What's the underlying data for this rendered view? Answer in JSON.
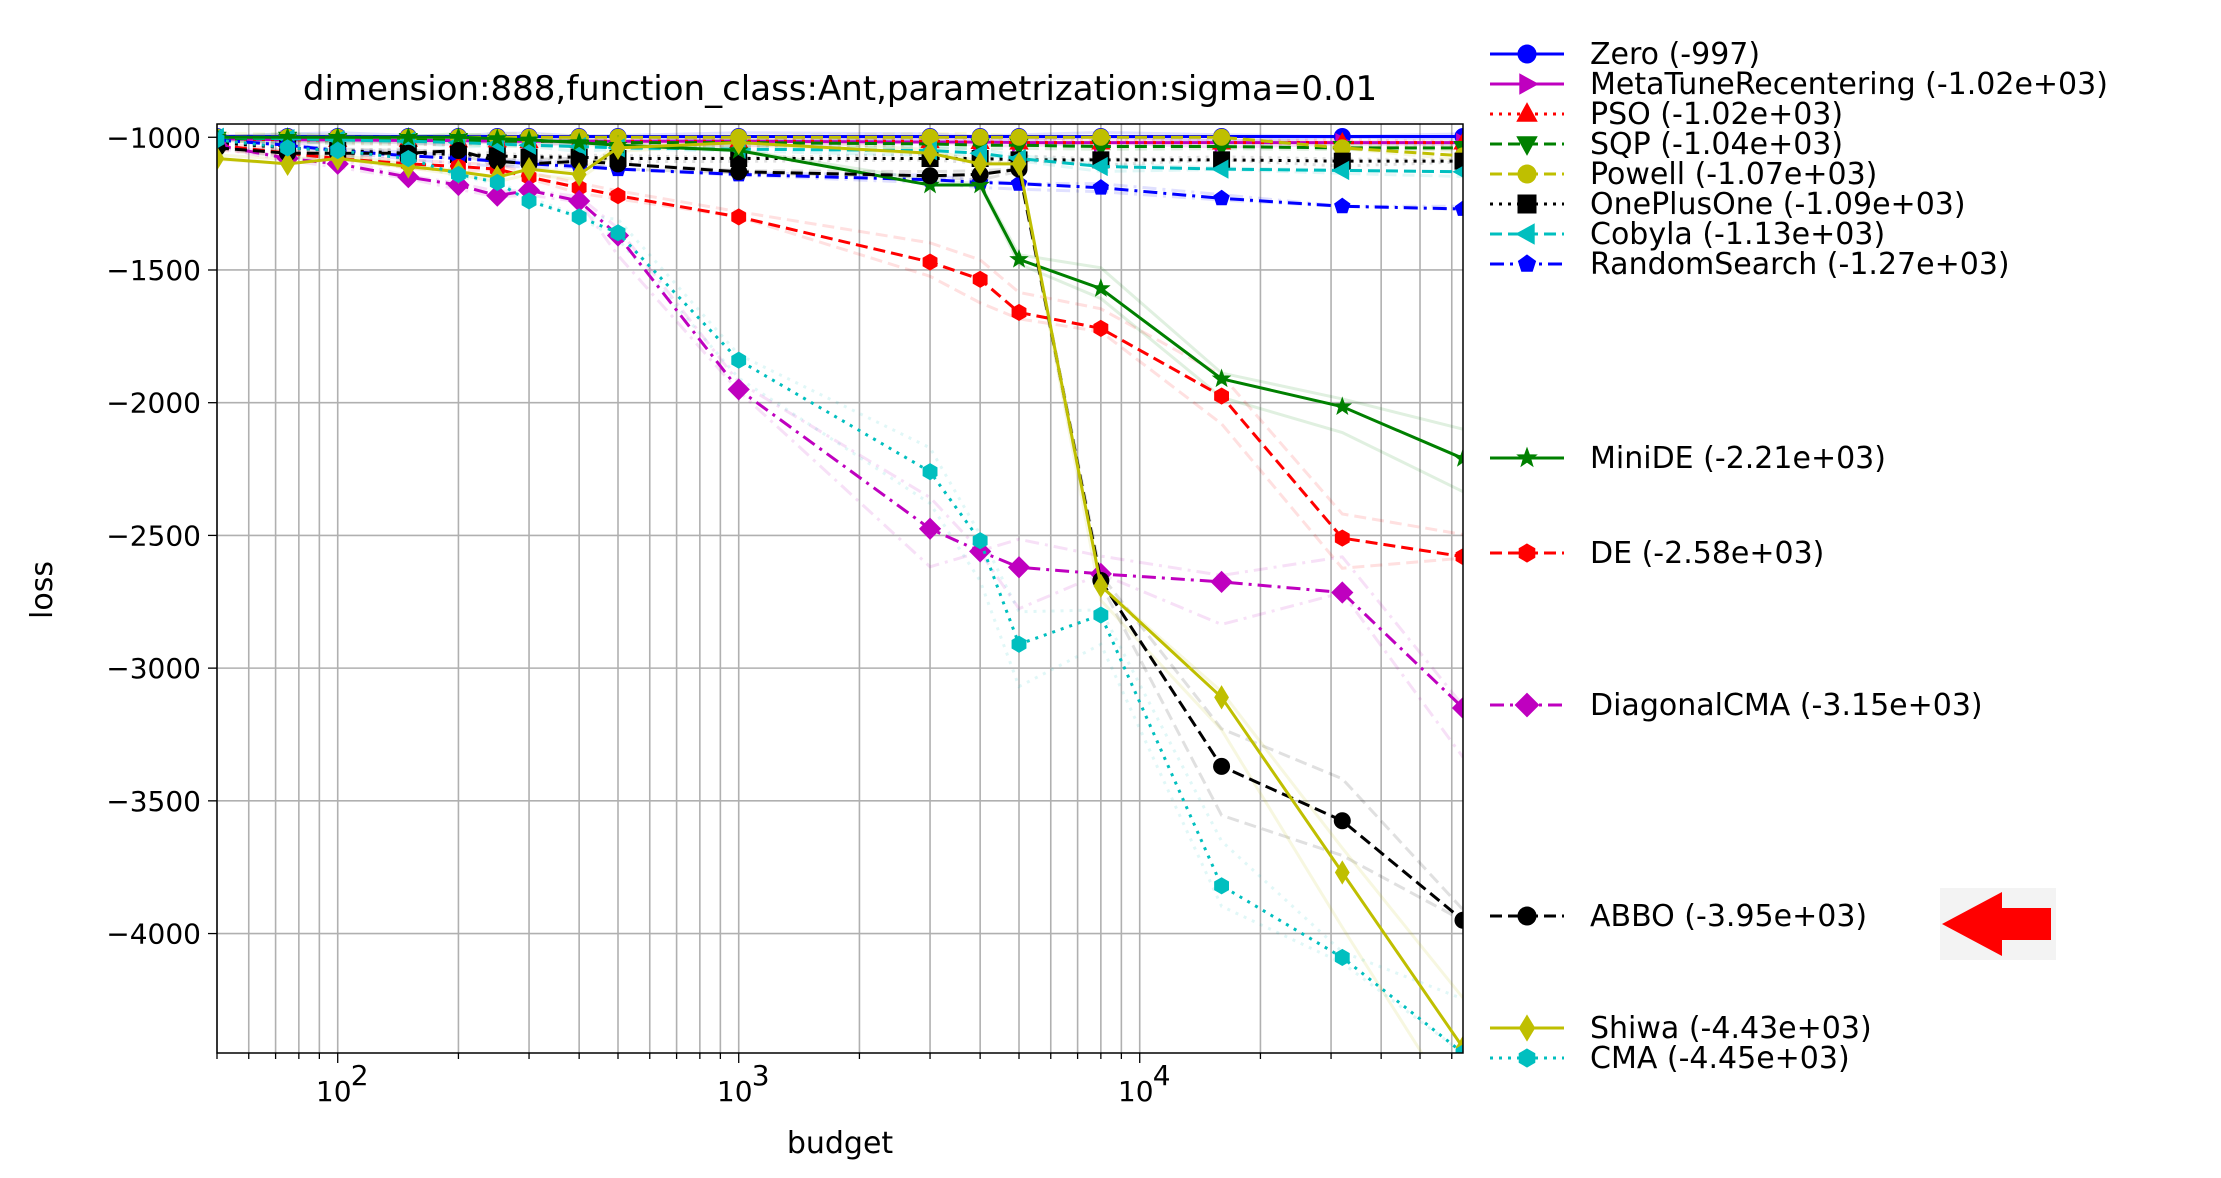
{
  "chart_data": {
    "type": "line",
    "title": "dimension:888,function_class:Ant,parametrization:sigma=0.01",
    "xlabel": "budget",
    "ylabel": "loss",
    "xscale": "log",
    "xlim": [
      50,
      64000
    ],
    "ylim": [
      -4450,
      -950
    ],
    "grid": true,
    "xticks": [
      {
        "value": 100,
        "base": "10",
        "exp": "2"
      },
      {
        "value": 1000,
        "base": "10",
        "exp": "3"
      },
      {
        "value": 10000,
        "base": "10",
        "exp": "4"
      }
    ],
    "yticks": [
      {
        "value": -1000,
        "label": "−1000"
      },
      {
        "value": -1500,
        "label": "−1500"
      },
      {
        "value": -2000,
        "label": "−2000"
      },
      {
        "value": -2500,
        "label": "−2500"
      },
      {
        "value": -3000,
        "label": "−3000"
      },
      {
        "value": -3500,
        "label": "−3500"
      },
      {
        "value": -4000,
        "label": "−4000"
      }
    ],
    "series": [
      {
        "name": "Zero",
        "legend": "Zero (-997)",
        "color": "#0000ff",
        "dash": "solid",
        "marker": "circle",
        "x": [
          50,
          75,
          100,
          150,
          200,
          250,
          300,
          400,
          500,
          1000,
          3000,
          4000,
          5000,
          8000,
          16000,
          32000,
          64000
        ],
        "y": [
          -997,
          -997,
          -997,
          -997,
          -997,
          -997,
          -997,
          -997,
          -997,
          -997,
          -997,
          -997,
          -997,
          -997,
          -997,
          -997,
          -997
        ]
      },
      {
        "name": "MetaTuneRecentering",
        "legend": "MetaTuneRecentering (-1.02e+03)",
        "color": "#bf00bf",
        "dash": "solid",
        "marker": "triangle-right",
        "x": [
          50,
          75,
          100,
          150,
          200,
          250,
          300,
          400,
          500,
          1000,
          3000,
          4000,
          5000,
          8000,
          16000,
          32000,
          64000
        ],
        "y": [
          -1005,
          -1010,
          -1010,
          -1012,
          -1012,
          -1015,
          -1015,
          -1015,
          -1015,
          -1015,
          -1018,
          -1018,
          -1020,
          -1020,
          -1020,
          -1020,
          -1020
        ]
      },
      {
        "name": "PSO",
        "legend": "PSO (-1.02e+03)",
        "color": "#ff0000",
        "dash": "dotted",
        "marker": "triangle-up",
        "x": [
          50,
          75,
          100,
          150,
          200,
          250,
          300,
          400,
          500,
          1000,
          3000,
          4000,
          5000,
          8000,
          16000,
          32000,
          64000
        ],
        "y": [
          -1005,
          -1010,
          -1010,
          -1010,
          -1012,
          -1012,
          -1015,
          -1015,
          -1015,
          -1015,
          -1015,
          -1018,
          -1020,
          -1020,
          -1020,
          -1020,
          -1020
        ]
      },
      {
        "name": "SQP",
        "legend": "SQP (-1.04e+03)",
        "color": "#008000",
        "dash": "dashed",
        "marker": "triangle-down",
        "x": [
          50,
          75,
          100,
          150,
          200,
          250,
          300,
          400,
          500,
          1000,
          3000,
          4000,
          5000,
          8000,
          16000,
          32000,
          64000
        ],
        "y": [
          -1005,
          -1005,
          -1010,
          -1010,
          -1010,
          -1015,
          -1015,
          -1015,
          -1020,
          -1020,
          -1025,
          -1030,
          -1030,
          -1035,
          -1035,
          -1040,
          -1040
        ]
      },
      {
        "name": "Powell",
        "legend": "Powell (-1.07e+03)",
        "color": "#bfbf00",
        "dash": "dashed",
        "marker": "circle",
        "x": [
          50,
          75,
          100,
          150,
          200,
          250,
          300,
          400,
          500,
          1000,
          3000,
          4000,
          5000,
          8000,
          16000,
          32000,
          64000
        ],
        "y": [
          -1000,
          -1000,
          -1000,
          -1000,
          -1000,
          -1000,
          -1000,
          -1000,
          -1000,
          -1000,
          -1000,
          -1000,
          -1000,
          -1000,
          -1000,
          -1040,
          -1070
        ]
      },
      {
        "name": "OnePlusOne",
        "legend": "OnePlusOne (-1.09e+03)",
        "color": "#000000",
        "dash": "dotted",
        "marker": "square",
        "x": [
          50,
          75,
          100,
          150,
          200,
          250,
          300,
          400,
          500,
          1000,
          3000,
          4000,
          5000,
          8000,
          16000,
          32000,
          64000
        ],
        "y": [
          -1020,
          -1040,
          -1050,
          -1060,
          -1065,
          -1070,
          -1075,
          -1075,
          -1080,
          -1080,
          -1080,
          -1080,
          -1085,
          -1085,
          -1085,
          -1090,
          -1090
        ]
      },
      {
        "name": "Cobyla",
        "legend": "Cobyla (-1.13e+03)",
        "color": "#00bfbf",
        "dash": "dashed",
        "marker": "triangle-left",
        "x": [
          50,
          75,
          100,
          150,
          200,
          250,
          300,
          400,
          500,
          1000,
          3000,
          4000,
          5000,
          8000,
          16000,
          32000,
          64000
        ],
        "y": [
          -1000,
          -1005,
          -1010,
          -1015,
          -1020,
          -1025,
          -1030,
          -1035,
          -1040,
          -1045,
          -1050,
          -1060,
          -1080,
          -1110,
          -1120,
          -1125,
          -1130
        ]
      },
      {
        "name": "RandomSearch",
        "legend": "RandomSearch (-1.27e+03)",
        "color": "#0000ff",
        "dash": "dashdot",
        "marker": "pentagon",
        "x": [
          50,
          75,
          100,
          150,
          200,
          250,
          300,
          400,
          500,
          1000,
          3000,
          4000,
          5000,
          8000,
          16000,
          32000,
          64000
        ],
        "y": [
          -1010,
          -1030,
          -1050,
          -1070,
          -1080,
          -1090,
          -1100,
          -1110,
          -1120,
          -1140,
          -1160,
          -1170,
          -1175,
          -1190,
          -1230,
          -1260,
          -1270
        ]
      },
      {
        "name": "MiniDE",
        "legend": "MiniDE (-2.21e+03)",
        "color": "#008000",
        "dash": "solid",
        "marker": "star",
        "x": [
          50,
          75,
          100,
          150,
          200,
          250,
          300,
          400,
          500,
          1000,
          3000,
          4000,
          5000,
          8000,
          16000,
          32000,
          64000
        ],
        "y": [
          -1000,
          -1000,
          -1000,
          -1000,
          -1000,
          -1005,
          -1010,
          -1020,
          -1030,
          -1050,
          -1180,
          -1180,
          -1460,
          -1570,
          -1910,
          -2015,
          -2210
        ]
      },
      {
        "name": "DE",
        "legend": "DE (-2.58e+03)",
        "color": "#ff0000",
        "dash": "dashed",
        "marker": "hexagon",
        "x": [
          50,
          75,
          100,
          150,
          200,
          250,
          300,
          400,
          500,
          1000,
          3000,
          4000,
          5000,
          8000,
          16000,
          32000,
          64000
        ],
        "y": [
          -1030,
          -1060,
          -1080,
          -1100,
          -1110,
          -1120,
          -1150,
          -1190,
          -1220,
          -1300,
          -1470,
          -1535,
          -1660,
          -1720,
          -1975,
          -2510,
          -2580
        ]
      },
      {
        "name": "DiagonalCMA",
        "legend": "DiagonalCMA (-3.15e+03)",
        "color": "#bf00bf",
        "dash": "dashdot",
        "marker": "diamond",
        "x": [
          50,
          75,
          100,
          150,
          200,
          250,
          300,
          400,
          500,
          1000,
          3000,
          4000,
          5000,
          8000,
          16000,
          32000,
          64000
        ],
        "y": [
          -1030,
          -1080,
          -1100,
          -1150,
          -1180,
          -1220,
          -1200,
          -1240,
          -1370,
          -1950,
          -2475,
          -2560,
          -2620,
          -2645,
          -2675,
          -2715,
          -3150
        ]
      },
      {
        "name": "ABBO",
        "legend": "ABBO (-3.95e+03)",
        "color": "#000000",
        "dash": "dashed",
        "marker": "circle",
        "x": [
          50,
          75,
          100,
          150,
          200,
          250,
          300,
          400,
          500,
          1000,
          3000,
          4000,
          5000,
          8000,
          16000,
          32000,
          64000
        ],
        "y": [
          -1040,
          -1060,
          -1060,
          -1060,
          -1050,
          -1090,
          -1100,
          -1090,
          -1100,
          -1130,
          -1145,
          -1140,
          -1120,
          -2670,
          -3370,
          -3575,
          -3950
        ]
      },
      {
        "name": "Shiwa",
        "legend": "Shiwa (-4.43e+03)",
        "color": "#bfbf00",
        "dash": "solid",
        "marker": "thin-diamond",
        "x": [
          50,
          75,
          100,
          150,
          200,
          250,
          300,
          400,
          500,
          1000,
          3000,
          4000,
          5000,
          8000,
          16000,
          32000,
          64000
        ],
        "y": [
          -1080,
          -1100,
          -1080,
          -1110,
          -1130,
          -1150,
          -1120,
          -1140,
          -1040,
          -1020,
          -1060,
          -1100,
          -1100,
          -2690,
          -3110,
          -3770,
          -4430
        ]
      },
      {
        "name": "CMA",
        "legend": "CMA (-4.45e+03)",
        "color": "#00bfbf",
        "dash": "dotted",
        "marker": "hexagon",
        "x": [
          50,
          75,
          100,
          150,
          200,
          250,
          300,
          400,
          500,
          1000,
          3000,
          4000,
          5000,
          8000,
          16000,
          32000,
          64000
        ],
        "y": [
          -1010,
          -1040,
          -1050,
          -1080,
          -1140,
          -1170,
          -1240,
          -1300,
          -1360,
          -1840,
          -2260,
          -2520,
          -2910,
          -2800,
          -3820,
          -4090,
          -4450
        ]
      }
    ],
    "annotation": {
      "type": "arrow",
      "target": "ABBO",
      "color": "#ff0000"
    }
  }
}
